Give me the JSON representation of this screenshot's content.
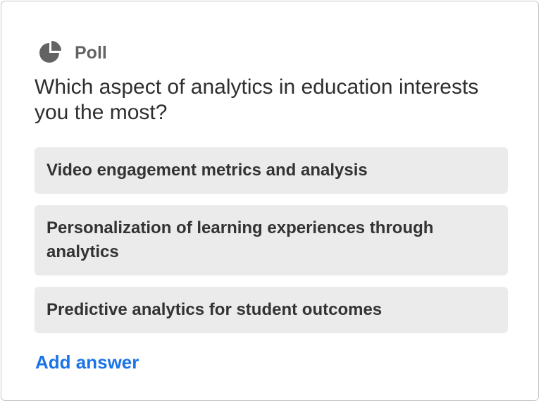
{
  "poll": {
    "header_label": "Poll",
    "header_icon": "pie-chart-icon",
    "question": "Which aspect of analytics in education interests you the most?",
    "answers": [
      {
        "label": "Video engagement metrics and analysis"
      },
      {
        "label": "Personalization of learning experiences through analytics"
      },
      {
        "label": "Predictive analytics for student outcomes"
      }
    ],
    "add_answer_label": "Add answer"
  },
  "colors": {
    "icon": "#636363",
    "answer_background": "#ebebeb",
    "link": "#1a73e8"
  }
}
